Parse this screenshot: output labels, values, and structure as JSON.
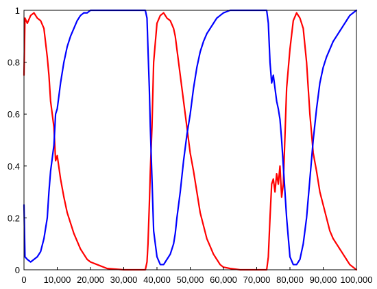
{
  "chart_data": {
    "type": "line",
    "title": "",
    "xlabel": "",
    "ylabel": "",
    "xlim": [
      0,
      100000
    ],
    "ylim": [
      0,
      1
    ],
    "grid": false,
    "legend": "none",
    "x_ticks": [
      0,
      10000,
      20000,
      30000,
      40000,
      50000,
      60000,
      70000,
      80000,
      90000,
      100000
    ],
    "x_tick_labels": [
      "0",
      "10,000",
      "20,000",
      "30,000",
      "40,000",
      "50,000",
      "60,000",
      "70,000",
      "80,000",
      "90,000",
      "100,000"
    ],
    "y_ticks": [
      0,
      0.2,
      0.4,
      0.6,
      0.8,
      1
    ],
    "y_tick_labels": [
      "0",
      "0.2",
      "0.4",
      "0.6",
      "0.8",
      "1"
    ],
    "series": [
      {
        "color": "#ff0000",
        "x": [
          0,
          300,
          1000,
          2000,
          3000,
          4000,
          5000,
          6000,
          7000,
          7500,
          8000,
          9000,
          9500,
          10000,
          11000,
          12000,
          13000,
          14000,
          15000,
          16000,
          17000,
          18000,
          19000,
          20000,
          22000,
          25000,
          30000,
          35000,
          36500,
          37000,
          37300,
          37700,
          38000,
          38500,
          39000,
          40000,
          41000,
          42000,
          43000,
          44000,
          45000,
          45500,
          46000,
          47000,
          48000,
          49000,
          50000,
          51000,
          52000,
          53000,
          54000,
          55000,
          56000,
          57000,
          58000,
          59000,
          60000,
          62000,
          65000,
          70000,
          73000,
          73500,
          74000,
          74500,
          75000,
          75500,
          76000,
          76500,
          77000,
          77500,
          78000,
          79000,
          80000,
          81000,
          82000,
          83000,
          84000,
          85000,
          86000,
          87000,
          88000,
          89000,
          90000,
          91000,
          92000,
          93000,
          94000,
          95000,
          96000,
          97000,
          98000,
          99000,
          100000
        ],
        "y": [
          0.75,
          0.97,
          0.95,
          0.98,
          0.99,
          0.97,
          0.96,
          0.93,
          0.82,
          0.75,
          0.65,
          0.55,
          0.42,
          0.44,
          0.35,
          0.28,
          0.22,
          0.18,
          0.14,
          0.11,
          0.08,
          0.06,
          0.04,
          0.03,
          0.02,
          0.005,
          0.0,
          0.0,
          0.0,
          0.03,
          0.1,
          0.25,
          0.38,
          0.55,
          0.8,
          0.95,
          0.98,
          0.99,
          0.97,
          0.96,
          0.93,
          0.9,
          0.85,
          0.75,
          0.65,
          0.55,
          0.45,
          0.38,
          0.3,
          0.22,
          0.17,
          0.12,
          0.09,
          0.06,
          0.04,
          0.02,
          0.01,
          0.005,
          0.0,
          0.0,
          0.0,
          0.05,
          0.2,
          0.33,
          0.35,
          0.3,
          0.37,
          0.33,
          0.4,
          0.28,
          0.33,
          0.7,
          0.85,
          0.96,
          0.99,
          0.97,
          0.93,
          0.8,
          0.6,
          0.45,
          0.38,
          0.3,
          0.25,
          0.2,
          0.15,
          0.12,
          0.1,
          0.08,
          0.06,
          0.04,
          0.02,
          0.01,
          0.0
        ]
      },
      {
        "color": "#0000ff",
        "x": [
          0,
          300,
          1000,
          2000,
          3000,
          4000,
          5000,
          6000,
          7000,
          7500,
          8000,
          9000,
          9500,
          10000,
          11000,
          12000,
          13000,
          14000,
          15000,
          16000,
          17000,
          18000,
          19000,
          20000,
          22000,
          25000,
          30000,
          35000,
          36500,
          37000,
          37300,
          37700,
          38000,
          38500,
          39000,
          40000,
          41000,
          42000,
          43000,
          44000,
          45000,
          45500,
          46000,
          47000,
          48000,
          49000,
          50000,
          51000,
          52000,
          53000,
          54000,
          55000,
          56000,
          57000,
          58000,
          59000,
          60000,
          62000,
          65000,
          70000,
          73000,
          73500,
          74000,
          74500,
          75000,
          75500,
          76000,
          76500,
          77000,
          77500,
          78000,
          79000,
          80000,
          81000,
          82000,
          83000,
          84000,
          85000,
          86000,
          87000,
          88000,
          89000,
          90000,
          91000,
          92000,
          93000,
          94000,
          95000,
          96000,
          97000,
          98000,
          99000,
          100000
        ],
        "y": [
          0.25,
          0.05,
          0.04,
          0.03,
          0.04,
          0.05,
          0.07,
          0.12,
          0.2,
          0.3,
          0.38,
          0.48,
          0.6,
          0.62,
          0.72,
          0.8,
          0.86,
          0.9,
          0.93,
          0.96,
          0.98,
          0.99,
          0.99,
          1.0,
          1.0,
          1.0,
          1.0,
          1.0,
          1.0,
          0.97,
          0.85,
          0.7,
          0.55,
          0.35,
          0.15,
          0.05,
          0.02,
          0.02,
          0.04,
          0.06,
          0.1,
          0.14,
          0.2,
          0.3,
          0.42,
          0.52,
          0.6,
          0.7,
          0.78,
          0.84,
          0.88,
          0.91,
          0.93,
          0.95,
          0.97,
          0.98,
          0.99,
          1.0,
          1.0,
          1.0,
          1.0,
          0.95,
          0.8,
          0.72,
          0.75,
          0.7,
          0.65,
          0.62,
          0.58,
          0.5,
          0.4,
          0.2,
          0.05,
          0.02,
          0.02,
          0.04,
          0.1,
          0.2,
          0.35,
          0.5,
          0.62,
          0.72,
          0.78,
          0.82,
          0.85,
          0.88,
          0.9,
          0.92,
          0.94,
          0.96,
          0.98,
          0.99,
          1.0
        ]
      }
    ]
  }
}
